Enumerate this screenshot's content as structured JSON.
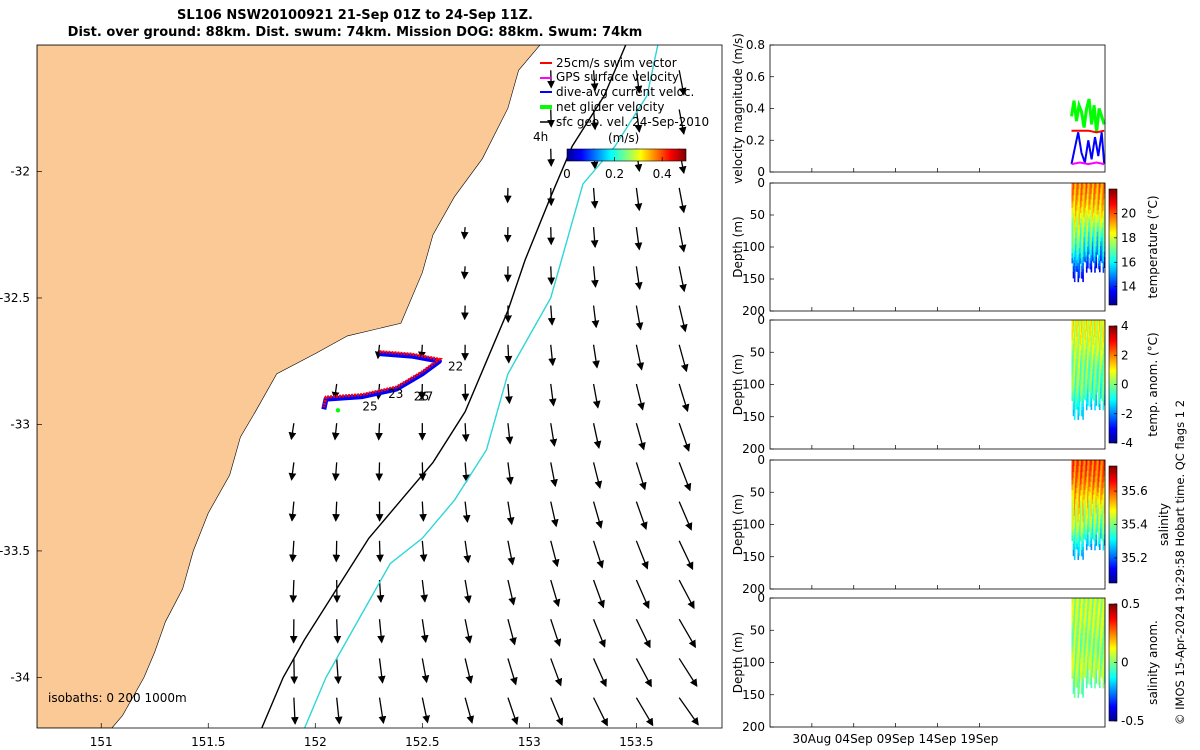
{
  "title": {
    "line1": "SL106 NSW20100921 21-Sep 01Z to 24-Sep 11Z.",
    "line2": "Dist. over ground: 88km. Dist. swum: 74km. Mission DOG: 88km. Swum: 74km"
  },
  "credit": "© IMOS 15-Apr-2024 19:29:58 Hobart time. QC flags 1  2",
  "colors": {
    "land": "#fbc995",
    "current_arrows": "#000000",
    "isobath_200": "#000000",
    "isobath_1000": "#2fd6d6",
    "swim_vector": "#ff0000",
    "gps_velocity": "#ff00ff",
    "dive_avg": "#0000ff",
    "net_velocity": "#00ff00"
  },
  "chart_data": [
    {
      "type": "map",
      "name": "glider-track-map",
      "xlim": [
        150.7,
        153.9
      ],
      "ylim": [
        -34.2,
        -31.5
      ],
      "x_ticks": [
        "151",
        "151.5",
        "152",
        "152.5",
        "153",
        "153.5"
      ],
      "y_ticks": [
        "-32",
        "-32.5",
        "-33",
        "-33.5",
        "-34"
      ],
      "x_tick_values": [
        151,
        151.5,
        152,
        152.5,
        153,
        153.5
      ],
      "y_tick_values": [
        -32,
        -32.5,
        -33,
        -33.5,
        -34
      ],
      "legend": [
        {
          "label": "25cm/s swim vector",
          "color": "#ff0000"
        },
        {
          "label": "GPS surface velocity",
          "color": "#ff00ff"
        },
        {
          "label": "dive-avg current veloc.",
          "color": "#0000ff"
        },
        {
          "label": "net glider velocity",
          "color": "#00ff00"
        },
        {
          "label": "sfc geo. vel. 24-Sep-2010",
          "color": "#000000"
        }
      ],
      "duration_label": "4h",
      "colorbar": {
        "label": "(m/s)",
        "ticks": [
          "0",
          "0.2",
          "0.4"
        ],
        "tick_values": [
          0,
          0.2,
          0.4
        ],
        "range": [
          0,
          0.5
        ]
      },
      "isobaths_label": "isobaths: 0  200  1000m",
      "day_labels": [
        {
          "label": "22",
          "lon": 152.62,
          "lat": -32.77
        },
        {
          "label": "23",
          "lon": 152.34,
          "lat": -32.88
        },
        {
          "label": "25",
          "lon": 152.22,
          "lat": -32.93
        },
        {
          "label": "26",
          "lon": 152.46,
          "lat": -32.89
        },
        {
          "label": "27",
          "lon": 152.48,
          "lat": -32.89
        }
      ],
      "track": {
        "start": [
          152.3,
          -32.72
        ],
        "end": [
          152.05,
          -32.94
        ],
        "points": [
          [
            152.3,
            -32.72
          ],
          [
            152.45,
            -32.73
          ],
          [
            152.58,
            -32.75
          ],
          [
            152.5,
            -32.8
          ],
          [
            152.38,
            -32.86
          ],
          [
            152.22,
            -32.89
          ],
          [
            152.05,
            -32.9
          ],
          [
            152.04,
            -32.94
          ]
        ]
      },
      "coast": [
        [
          153.05,
          -31.5
        ],
        [
          152.95,
          -31.6
        ],
        [
          152.9,
          -31.75
        ],
        [
          152.78,
          -31.95
        ],
        [
          152.65,
          -32.1
        ],
        [
          152.55,
          -32.25
        ],
        [
          152.5,
          -32.4
        ],
        [
          152.4,
          -32.6
        ],
        [
          152.15,
          -32.65
        ],
        [
          152.0,
          -32.72
        ],
        [
          151.82,
          -32.8
        ],
        [
          151.72,
          -32.95
        ],
        [
          151.65,
          -33.05
        ],
        [
          151.6,
          -33.2
        ],
        [
          151.5,
          -33.35
        ],
        [
          151.43,
          -33.5
        ],
        [
          151.38,
          -33.65
        ],
        [
          151.3,
          -33.78
        ],
        [
          151.25,
          -33.9
        ],
        [
          151.2,
          -34.0
        ],
        [
          151.1,
          -34.15
        ],
        [
          151.05,
          -34.2
        ]
      ],
      "isobath_200": [
        [
          153.45,
          -31.5
        ],
        [
          153.35,
          -31.7
        ],
        [
          153.2,
          -31.9
        ],
        [
          153.1,
          -32.1
        ],
        [
          152.98,
          -32.35
        ],
        [
          152.9,
          -32.55
        ],
        [
          152.8,
          -32.75
        ],
        [
          152.7,
          -32.95
        ],
        [
          152.55,
          -33.15
        ],
        [
          152.4,
          -33.3
        ],
        [
          152.25,
          -33.45
        ],
        [
          152.1,
          -33.65
        ],
        [
          151.95,
          -33.85
        ],
        [
          151.85,
          -34.0
        ],
        [
          151.75,
          -34.2
        ]
      ],
      "isobath_1000": [
        [
          153.6,
          -31.5
        ],
        [
          153.55,
          -31.7
        ],
        [
          153.4,
          -31.9
        ],
        [
          153.25,
          -32.05
        ],
        [
          153.2,
          -32.2
        ],
        [
          153.15,
          -32.35
        ],
        [
          153.1,
          -32.5
        ],
        [
          153.0,
          -32.65
        ],
        [
          152.9,
          -32.8
        ],
        [
          152.85,
          -32.95
        ],
        [
          152.8,
          -33.1
        ],
        [
          152.65,
          -33.3
        ],
        [
          152.5,
          -33.45
        ],
        [
          152.35,
          -33.55
        ],
        [
          152.25,
          -33.7
        ],
        [
          152.15,
          -33.85
        ],
        [
          152.05,
          -34.0
        ],
        [
          151.95,
          -34.2
        ]
      ]
    },
    {
      "type": "line",
      "name": "velocity-magnitude",
      "ylabel": "velocity magnitude (m/s)",
      "ylim": [
        0,
        0.8
      ],
      "y_ticks": [
        "0",
        "0.2",
        "0.4",
        "0.6",
        "0.8"
      ],
      "y_tick_values": [
        0,
        0.2,
        0.4,
        0.6,
        0.8
      ],
      "x_range_days": [
        0,
        40
      ],
      "series": [
        {
          "color": "#00ff00",
          "x": [
            36.0,
            36.3,
            36.6,
            36.9,
            37.2,
            37.5,
            37.8,
            38.1,
            38.4,
            38.7,
            39.0,
            39.3,
            39.6,
            39.9
          ],
          "y": [
            0.35,
            0.45,
            0.32,
            0.42,
            0.38,
            0.28,
            0.4,
            0.46,
            0.3,
            0.42,
            0.25,
            0.4,
            0.35,
            0.3
          ]
        },
        {
          "color": "#ff0000",
          "x": [
            36.0,
            37.0,
            38.0,
            39.0,
            39.9
          ],
          "y": [
            0.26,
            0.26,
            0.26,
            0.25,
            0.26
          ]
        },
        {
          "color": "#0000ff",
          "x": [
            36.0,
            36.4,
            36.8,
            37.2,
            37.6,
            38.0,
            38.4,
            38.8,
            39.2,
            39.6,
            39.9
          ],
          "y": [
            0.05,
            0.15,
            0.25,
            0.12,
            0.06,
            0.2,
            0.08,
            0.22,
            0.1,
            0.25,
            0.05
          ]
        },
        {
          "color": "#ff00ff",
          "x": [
            36.0,
            37.0,
            38.0,
            39.0,
            39.9
          ],
          "y": [
            0.05,
            0.06,
            0.05,
            0.06,
            0.05
          ]
        }
      ]
    },
    {
      "type": "heatmap",
      "name": "temperature",
      "ylabel": "Depth (m)",
      "ylim": [
        0,
        200
      ],
      "y_ticks": [
        "0",
        "50",
        "100",
        "150",
        "200"
      ],
      "y_tick_values": [
        0,
        50,
        100,
        150,
        200
      ],
      "colorbar_label": "temperature (°C)",
      "colorbar_ticks": [
        "14",
        "16",
        "18",
        "20"
      ],
      "colorbar_tick_values": [
        14,
        16,
        18,
        20
      ],
      "colorbar_range": [
        12.5,
        22
      ],
      "data_start_day": 36.0,
      "data_end_day": 40.0,
      "surface_value": 19.5,
      "bottom_value": 13.5
    },
    {
      "type": "heatmap",
      "name": "temperature-anomaly",
      "ylabel": "Depth (m)",
      "ylim": [
        0,
        200
      ],
      "y_ticks": [
        "0",
        "50",
        "100",
        "150",
        "200"
      ],
      "y_tick_values": [
        0,
        50,
        100,
        150,
        200
      ],
      "colorbar_label": "temp. anom. (°C)",
      "colorbar_ticks": [
        "-4",
        "-2",
        "0",
        "2",
        "4"
      ],
      "colorbar_tick_values": [
        -4,
        -2,
        0,
        2,
        4
      ],
      "colorbar_range": [
        -4,
        4
      ],
      "data_start_day": 36.0,
      "data_end_day": 40.0,
      "surface_value": 0.8,
      "bottom_value": -1.2
    },
    {
      "type": "heatmap",
      "name": "salinity",
      "ylabel": "Depth (m)",
      "ylim": [
        0,
        200
      ],
      "y_ticks": [
        "0",
        "50",
        "100",
        "150",
        "200"
      ],
      "y_tick_values": [
        0,
        50,
        100,
        150,
        200
      ],
      "colorbar_label": "salinity",
      "colorbar_ticks": [
        "35.2",
        "35.4",
        "35.6"
      ],
      "colorbar_tick_values": [
        35.2,
        35.4,
        35.6
      ],
      "colorbar_range": [
        35.05,
        35.75
      ],
      "data_start_day": 36.0,
      "data_end_day": 40.0,
      "surface_value": 35.6,
      "bottom_value": 35.25
    },
    {
      "type": "heatmap",
      "name": "salinity-anomaly",
      "ylabel": "Depth (m)",
      "ylim": [
        0,
        200
      ],
      "y_ticks": [
        "0",
        "50",
        "100",
        "150",
        "200"
      ],
      "y_tick_values": [
        0,
        50,
        100,
        150,
        200
      ],
      "colorbar_label": "salinity anom.",
      "colorbar_ticks": [
        "-0.5",
        "0",
        "0.5"
      ],
      "colorbar_tick_values": [
        -0.5,
        0,
        0.5
      ],
      "colorbar_range": [
        -0.5,
        0.5
      ],
      "x_ticks": [
        "30Aug",
        "04Sep",
        "09Sep",
        "14Sep",
        "19Sep"
      ],
      "x_tick_days": [
        5,
        10,
        15,
        20,
        25
      ],
      "data_start_day": 36.0,
      "data_end_day": 40.0,
      "surface_value": 0.05,
      "bottom_value": 0.0
    }
  ]
}
